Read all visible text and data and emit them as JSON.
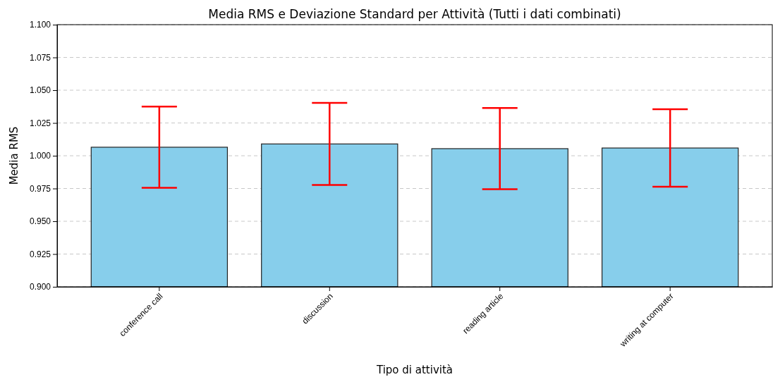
{
  "chart_data": {
    "type": "bar",
    "title": "Media RMS e Deviazione Standard per Attività (Tutti i dati combinati)",
    "xlabel": "Tipo di attività",
    "ylabel": "Media RMS",
    "categories": [
      "conference call",
      "discussion",
      "reading article",
      "writing at computer"
    ],
    "values": [
      1.0065,
      1.009,
      1.0054,
      1.0059
    ],
    "errors": [
      0.031,
      0.0313,
      0.031,
      0.0296
    ],
    "color": "#87ceeb",
    "ylim": [
      0.9,
      1.1
    ],
    "yticks": [
      {
        "value": 0.9,
        "label": "0.900"
      },
      {
        "value": 0.925,
        "label": "0.925"
      },
      {
        "value": 0.95,
        "label": "0.950"
      },
      {
        "value": 0.975,
        "label": "0.975"
      },
      {
        "value": 1.0,
        "label": "1.000"
      },
      {
        "value": 1.025,
        "label": "1.025"
      },
      {
        "value": 1.05,
        "label": "1.050"
      },
      {
        "value": 1.075,
        "label": "1.075"
      },
      {
        "value": 1.1,
        "label": "1.100"
      }
    ],
    "grid": "y"
  }
}
